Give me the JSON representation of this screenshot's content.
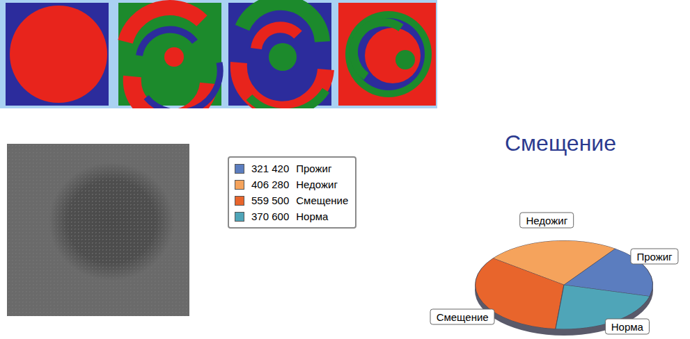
{
  "chart_data": {
    "type": "pie",
    "title": "Смещение",
    "categories": [
      "Прожиг",
      "Недожиг",
      "Смещение",
      "Норма"
    ],
    "values": [
      321420,
      406280,
      559500,
      370600
    ],
    "value_labels": [
      "321 420",
      "406 280",
      "559 500",
      "370 600"
    ],
    "colors": [
      "#5b7dbf",
      "#f5a35c",
      "#e8652c",
      "#4fa5b8"
    ],
    "legend": "left"
  }
}
